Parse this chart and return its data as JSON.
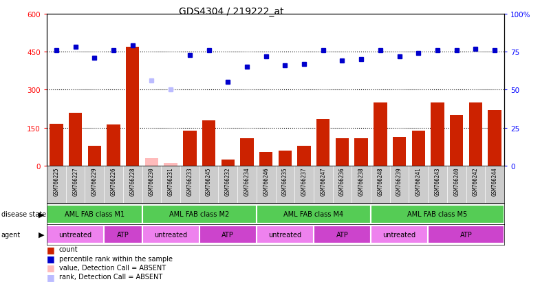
{
  "title": "GDS4304 / 219222_at",
  "samples": [
    "GSM766225",
    "GSM766227",
    "GSM766229",
    "GSM766226",
    "GSM766228",
    "GSM766230",
    "GSM766231",
    "GSM766233",
    "GSM766245",
    "GSM766232",
    "GSM766234",
    "GSM766246",
    "GSM766235",
    "GSM766237",
    "GSM766247",
    "GSM766236",
    "GSM766238",
    "GSM766248",
    "GSM766239",
    "GSM766241",
    "GSM766243",
    "GSM766240",
    "GSM766242",
    "GSM766244"
  ],
  "count_values": [
    165,
    210,
    80,
    162,
    470,
    30,
    10,
    140,
    180,
    25,
    110,
    55,
    60,
    80,
    185,
    110,
    110,
    250,
    115,
    140,
    250,
    200,
    250,
    220
  ],
  "absent_count": [
    false,
    false,
    false,
    false,
    false,
    true,
    true,
    false,
    false,
    false,
    false,
    false,
    false,
    false,
    false,
    false,
    false,
    false,
    false,
    false,
    false,
    false,
    false,
    false
  ],
  "rank_values": [
    76,
    78,
    71,
    76,
    79,
    56,
    50,
    73,
    76,
    55,
    65,
    72,
    66,
    67,
    76,
    69,
    70,
    76,
    72,
    74,
    76,
    76,
    77,
    76
  ],
  "absent_rank": [
    false,
    false,
    false,
    false,
    false,
    true,
    true,
    false,
    false,
    false,
    false,
    false,
    false,
    false,
    false,
    false,
    false,
    false,
    false,
    false,
    false,
    false,
    false,
    false
  ],
  "disease_groups": [
    {
      "label": "AML FAB class M1",
      "start": 0,
      "end": 5,
      "color": "#55cc55"
    },
    {
      "label": "AML FAB class M2",
      "start": 5,
      "end": 11,
      "color": "#55cc55"
    },
    {
      "label": "AML FAB class M4",
      "start": 11,
      "end": 17,
      "color": "#55cc55"
    },
    {
      "label": "AML FAB class M5",
      "start": 17,
      "end": 24,
      "color": "#55cc55"
    }
  ],
  "agent_groups": [
    {
      "label": "untreated",
      "start": 0,
      "end": 3,
      "color": "#ee82ee"
    },
    {
      "label": "ATP",
      "start": 3,
      "end": 5,
      "color": "#cc44cc"
    },
    {
      "label": "untreated",
      "start": 5,
      "end": 8,
      "color": "#ee82ee"
    },
    {
      "label": "ATP",
      "start": 8,
      "end": 11,
      "color": "#cc44cc"
    },
    {
      "label": "untreated",
      "start": 11,
      "end": 14,
      "color": "#ee82ee"
    },
    {
      "label": "ATP",
      "start": 14,
      "end": 17,
      "color": "#cc44cc"
    },
    {
      "label": "untreated",
      "start": 17,
      "end": 20,
      "color": "#ee82ee"
    },
    {
      "label": "ATP",
      "start": 20,
      "end": 24,
      "color": "#cc44cc"
    }
  ],
  "ylim_left": [
    0,
    600
  ],
  "ylim_right": [
    0,
    100
  ],
  "yticks_left": [
    0,
    150,
    300,
    450,
    600
  ],
  "yticks_right": [
    0,
    25,
    50,
    75,
    100
  ],
  "bar_color": "#cc2200",
  "absent_bar_color": "#ffbbbb",
  "dot_color": "#0000cc",
  "absent_dot_color": "#bbbbff",
  "legend_items": [
    {
      "label": "count",
      "color": "#cc2200"
    },
    {
      "label": "percentile rank within the sample",
      "color": "#0000cc"
    },
    {
      "label": "value, Detection Call = ABSENT",
      "color": "#ffbbbb"
    },
    {
      "label": "rank, Detection Call = ABSENT",
      "color": "#bbbbff"
    }
  ]
}
